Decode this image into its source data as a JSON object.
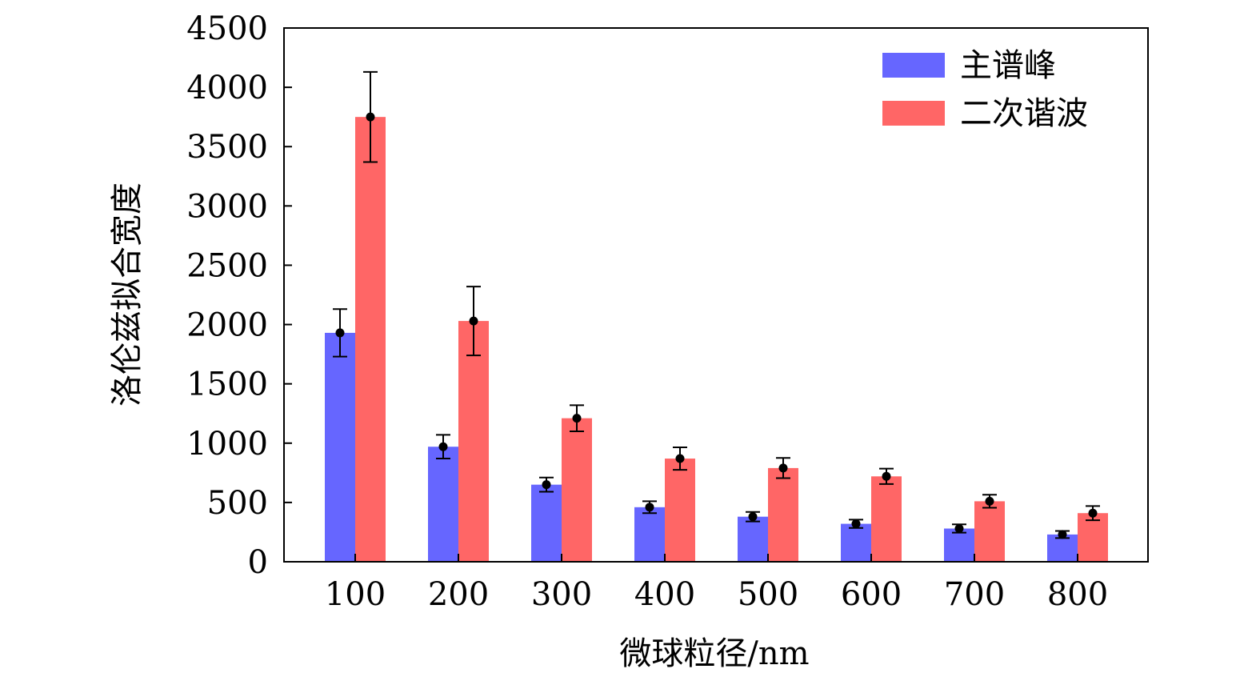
{
  "chart_data": {
    "type": "bar",
    "title": "",
    "xlabel": "微球粒径/nm",
    "ylabel": "洛伦兹拟合宽度",
    "ylim": [
      0,
      4500
    ],
    "yticks": [
      0,
      500,
      1000,
      1500,
      2000,
      2500,
      3000,
      3500,
      4000,
      4500
    ],
    "categories": [
      "100",
      "200",
      "300",
      "400",
      "500",
      "600",
      "700",
      "800"
    ],
    "legend_position": "top-right",
    "series": [
      {
        "name": "主谱峰",
        "color": "#6666ff",
        "values": [
          1930,
          970,
          650,
          460,
          380,
          320,
          280,
          230
        ],
        "errors": [
          200,
          100,
          60,
          50,
          40,
          35,
          35,
          30
        ]
      },
      {
        "name": "二次谐波",
        "color": "#ff6666",
        "values": [
          3750,
          2030,
          1210,
          870,
          790,
          720,
          510,
          410
        ],
        "errors": [
          380,
          290,
          110,
          95,
          85,
          65,
          55,
          60
        ]
      }
    ]
  }
}
